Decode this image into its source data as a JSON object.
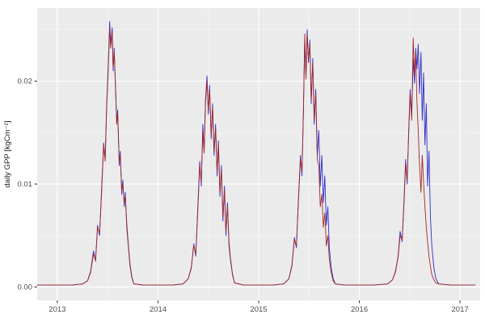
{
  "figure": {
    "kind": "ggplot-style time series",
    "background": "#ffffff"
  },
  "chart_data": {
    "type": "line",
    "title": "",
    "xlabel": "",
    "ylabel": "daily GPP [kgCm⁻²]",
    "legend": "none",
    "grid": "on",
    "panel_bg": "#ebebeb",
    "grid_major_color": "#ffffff",
    "grid_minor_color": "#f7f7f7",
    "axis_text_color": "#4d4d4d",
    "axis_title_color": "#1a1a1a",
    "tick_mark_color": "#333333",
    "x_domain": [
      2012.8,
      2017.2
    ],
    "y_domain": [
      -0.0013,
      0.0271
    ],
    "x_ticks": [
      2013,
      2014,
      2015,
      2016,
      2017
    ],
    "x_tick_labels": [
      "2013",
      "2014",
      "2015",
      "2016",
      "2017"
    ],
    "x_minor_ticks": [
      2013.5,
      2014.5,
      2015.5,
      2016.5
    ],
    "y_ticks": [
      0.0,
      0.01,
      0.02
    ],
    "y_tick_labels": [
      "0.00",
      "0.01",
      "0.02"
    ],
    "y_minor_ticks": [
      0.005,
      0.015,
      0.025
    ],
    "series": [
      {
        "name": "series-blue",
        "color": "#2d2dcb"
      },
      {
        "name": "series-red",
        "color": "#a32626"
      }
    ],
    "points_format": [
      "x_year",
      "y_blue",
      "y_red"
    ],
    "points": [
      [
        2012.8,
        0.0002,
        0.0002
      ],
      [
        2013.0,
        0.0002,
        0.0002
      ],
      [
        2013.15,
        0.0002,
        0.0002
      ],
      [
        2013.25,
        0.0003,
        0.0003
      ],
      [
        2013.3,
        0.0006,
        0.0006
      ],
      [
        2013.33,
        0.0015,
        0.0014
      ],
      [
        2013.36,
        0.0035,
        0.0032
      ],
      [
        2013.38,
        0.0025,
        0.0026
      ],
      [
        2013.4,
        0.006,
        0.0058
      ],
      [
        2013.42,
        0.005,
        0.0052
      ],
      [
        2013.44,
        0.0095,
        0.0092
      ],
      [
        2013.46,
        0.014,
        0.0138
      ],
      [
        2013.475,
        0.0125,
        0.0122
      ],
      [
        2013.49,
        0.0175,
        0.0172
      ],
      [
        2013.505,
        0.0215,
        0.021
      ],
      [
        2013.52,
        0.0258,
        0.0252
      ],
      [
        2013.53,
        0.0235,
        0.0232
      ],
      [
        2013.545,
        0.0252,
        0.0248
      ],
      [
        2013.555,
        0.021,
        0.0214
      ],
      [
        2013.565,
        0.0232,
        0.0228
      ],
      [
        2013.58,
        0.0188,
        0.0192
      ],
      [
        2013.59,
        0.016,
        0.0158
      ],
      [
        2013.6,
        0.0172,
        0.0168
      ],
      [
        2013.615,
        0.0118,
        0.0122
      ],
      [
        2013.625,
        0.0132,
        0.0128
      ],
      [
        2013.64,
        0.009,
        0.0094
      ],
      [
        2013.65,
        0.0104,
        0.01
      ],
      [
        2013.665,
        0.0078,
        0.0082
      ],
      [
        2013.675,
        0.0092,
        0.0088
      ],
      [
        2013.69,
        0.0058,
        0.0062
      ],
      [
        2013.705,
        0.004,
        0.0042
      ],
      [
        2013.72,
        0.0022,
        0.0024
      ],
      [
        2013.74,
        0.0009,
        0.001
      ],
      [
        2013.76,
        0.0003,
        0.0003
      ],
      [
        2013.85,
        0.0002,
        0.0002
      ],
      [
        2014.0,
        0.0002,
        0.0002
      ],
      [
        2014.15,
        0.0002,
        0.0002
      ],
      [
        2014.25,
        0.0003,
        0.0003
      ],
      [
        2014.3,
        0.0008,
        0.0008
      ],
      [
        2014.33,
        0.0018,
        0.0019
      ],
      [
        2014.355,
        0.0042,
        0.004
      ],
      [
        2014.375,
        0.003,
        0.0032
      ],
      [
        2014.395,
        0.0075,
        0.0072
      ],
      [
        2014.415,
        0.0122,
        0.0118
      ],
      [
        2014.43,
        0.0098,
        0.0102
      ],
      [
        2014.445,
        0.0158,
        0.0152
      ],
      [
        2014.458,
        0.0132,
        0.013
      ],
      [
        2014.472,
        0.0182,
        0.0178
      ],
      [
        2014.487,
        0.0205,
        0.02
      ],
      [
        2014.5,
        0.0168,
        0.0172
      ],
      [
        2014.513,
        0.0196,
        0.0192
      ],
      [
        2014.528,
        0.0144,
        0.0148
      ],
      [
        2014.542,
        0.0178,
        0.0174
      ],
      [
        2014.557,
        0.0128,
        0.0132
      ],
      [
        2014.572,
        0.0158,
        0.0154
      ],
      [
        2014.587,
        0.0108,
        0.0112
      ],
      [
        2014.6,
        0.0142,
        0.0138
      ],
      [
        2014.615,
        0.0088,
        0.0092
      ],
      [
        2014.63,
        0.0118,
        0.0114
      ],
      [
        2014.645,
        0.0064,
        0.0068
      ],
      [
        2014.66,
        0.0098,
        0.0094
      ],
      [
        2014.675,
        0.005,
        0.0054
      ],
      [
        2014.69,
        0.0082,
        0.0078
      ],
      [
        2014.705,
        0.004,
        0.0044
      ],
      [
        2014.72,
        0.0026,
        0.0028
      ],
      [
        2014.74,
        0.0012,
        0.0013
      ],
      [
        2014.76,
        0.0004,
        0.0004
      ],
      [
        2014.85,
        0.0002,
        0.0002
      ],
      [
        2015.0,
        0.0002,
        0.0002
      ],
      [
        2015.15,
        0.0002,
        0.0002
      ],
      [
        2015.25,
        0.0003,
        0.0003
      ],
      [
        2015.3,
        0.0008,
        0.0008
      ],
      [
        2015.33,
        0.002,
        0.0021
      ],
      [
        2015.355,
        0.0048,
        0.0046
      ],
      [
        2015.375,
        0.0038,
        0.004
      ],
      [
        2015.395,
        0.0086,
        0.0084
      ],
      [
        2015.415,
        0.0128,
        0.0124
      ],
      [
        2015.43,
        0.0108,
        0.0112
      ],
      [
        2015.445,
        0.0175,
        0.017
      ],
      [
        2015.458,
        0.024,
        0.0246
      ],
      [
        2015.47,
        0.0205,
        0.0202
      ],
      [
        2015.482,
        0.025,
        0.0245
      ],
      [
        2015.495,
        0.0218,
        0.0222
      ],
      [
        2015.508,
        0.024,
        0.0236
      ],
      [
        2015.522,
        0.0178,
        0.0182
      ],
      [
        2015.537,
        0.0222,
        0.0218
      ],
      [
        2015.552,
        0.0158,
        0.0162
      ],
      [
        2015.567,
        0.0192,
        0.0188
      ],
      [
        2015.582,
        0.0128,
        0.0124
      ],
      [
        2015.597,
        0.0152,
        0.0118
      ],
      [
        2015.612,
        0.0098,
        0.0078
      ],
      [
        2015.627,
        0.0128,
        0.009
      ],
      [
        2015.642,
        0.0082,
        0.0058
      ],
      [
        2015.657,
        0.0108,
        0.0072
      ],
      [
        2015.672,
        0.006,
        0.004
      ],
      [
        2015.687,
        0.0078,
        0.005
      ],
      [
        2015.702,
        0.0038,
        0.0027
      ],
      [
        2015.72,
        0.0019,
        0.0014
      ],
      [
        2015.74,
        0.0008,
        0.0006
      ],
      [
        2015.76,
        0.0003,
        0.0003
      ],
      [
        2015.85,
        0.0002,
        0.0002
      ],
      [
        2016.0,
        0.0002,
        0.0002
      ],
      [
        2016.15,
        0.0002,
        0.0002
      ],
      [
        2016.28,
        0.0003,
        0.0003
      ],
      [
        2016.33,
        0.0007,
        0.0007
      ],
      [
        2016.36,
        0.0015,
        0.0016
      ],
      [
        2016.385,
        0.003,
        0.0029
      ],
      [
        2016.405,
        0.0054,
        0.005
      ],
      [
        2016.425,
        0.0044,
        0.0046
      ],
      [
        2016.445,
        0.0088,
        0.0084
      ],
      [
        2016.46,
        0.0124,
        0.012
      ],
      [
        2016.475,
        0.01,
        0.0104
      ],
      [
        2016.49,
        0.0152,
        0.0148
      ],
      [
        2016.505,
        0.0192,
        0.0188
      ],
      [
        2016.52,
        0.0166,
        0.0162
      ],
      [
        2016.535,
        0.0222,
        0.0242
      ],
      [
        2016.548,
        0.0198,
        0.0205
      ],
      [
        2016.56,
        0.0232,
        0.0228
      ],
      [
        2016.573,
        0.0212,
        0.0178
      ],
      [
        2016.585,
        0.0236,
        0.0152
      ],
      [
        2016.598,
        0.0188,
        0.0118
      ],
      [
        2016.612,
        0.0228,
        0.0092
      ],
      [
        2016.625,
        0.0162,
        0.0128
      ],
      [
        2016.638,
        0.0208,
        0.0102
      ],
      [
        2016.652,
        0.0138,
        0.0078
      ],
      [
        2016.665,
        0.0178,
        0.0058
      ],
      [
        2016.678,
        0.0098,
        0.0044
      ],
      [
        2016.692,
        0.0132,
        0.003
      ],
      [
        2016.706,
        0.0068,
        0.002
      ],
      [
        2016.72,
        0.004,
        0.0012
      ],
      [
        2016.74,
        0.0019,
        0.0007
      ],
      [
        2016.76,
        0.0008,
        0.0004
      ],
      [
        2016.79,
        0.0003,
        0.0003
      ],
      [
        2016.9,
        0.0002,
        0.0002
      ],
      [
        2017.0,
        0.0002,
        0.0002
      ],
      [
        2017.15,
        0.0002,
        0.0002
      ]
    ]
  }
}
